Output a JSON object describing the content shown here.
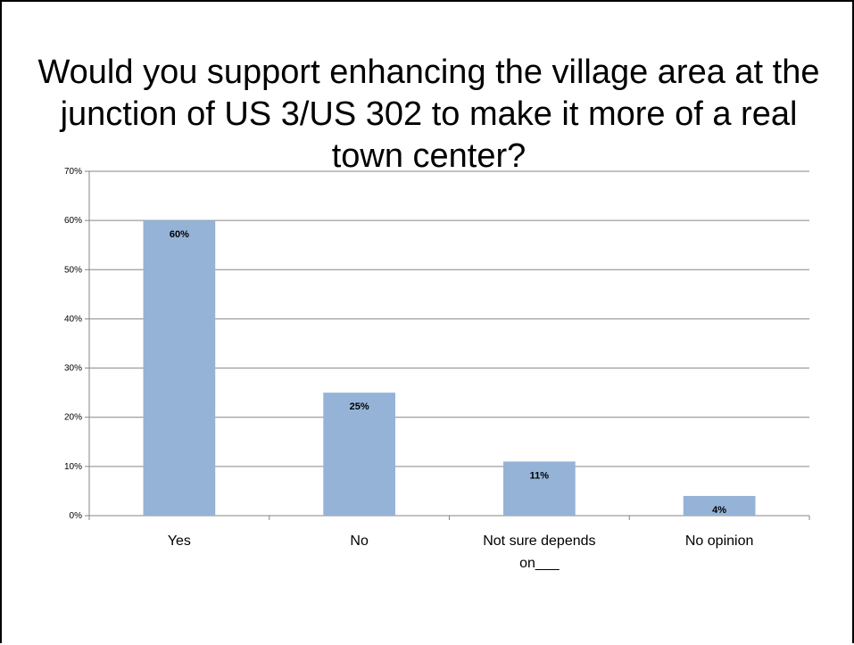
{
  "slide": {
    "title": "Would you support enhancing the village area at the junction of US 3/US 302 to make it more of a real town center?"
  },
  "chart_data": {
    "type": "bar",
    "title": "Would you support enhancing the village area at the junction of US 3/US 302 to make it more of a real town center?",
    "categories": [
      [
        "Yes"
      ],
      [
        "No"
      ],
      [
        "Not sure depends",
        "on___"
      ],
      [
        "No opinion"
      ]
    ],
    "values": [
      60,
      25,
      11,
      4
    ],
    "data_labels": [
      "60%",
      "25%",
      "11%",
      "4%"
    ],
    "ylim": [
      0,
      70
    ],
    "yticks": [
      0,
      10,
      20,
      30,
      40,
      50,
      60,
      70
    ],
    "ytick_labels": [
      "0%",
      "10%",
      "20%",
      "30%",
      "40%",
      "50%",
      "60%",
      "70%"
    ],
    "xlabel": "",
    "ylabel": "",
    "grid": true,
    "legend": "none",
    "colors": {
      "bar": "#95B3D7",
      "grid": "#868686",
      "axis": "#868686",
      "text": "#000000"
    }
  }
}
